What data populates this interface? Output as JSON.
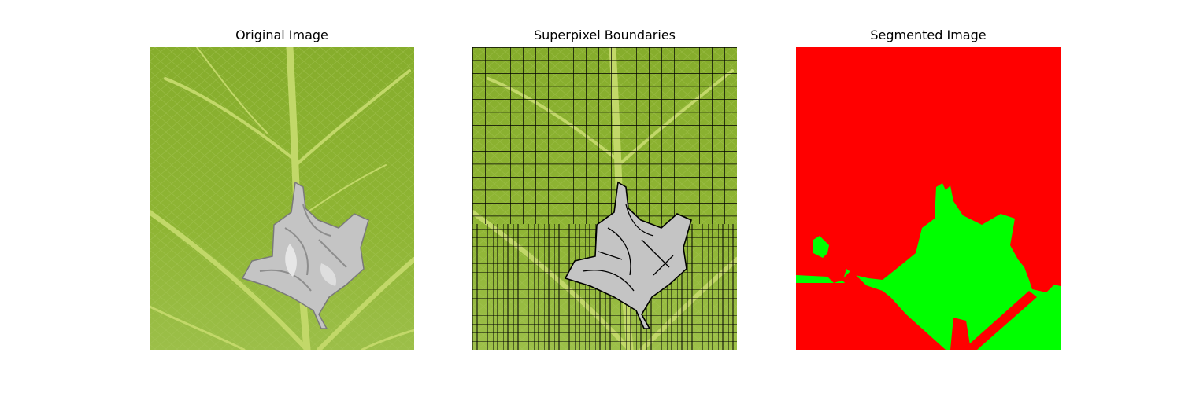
{
  "figure": {
    "panels": [
      {
        "title": "Original Image"
      },
      {
        "title": "Superpixel Boundaries"
      },
      {
        "title": "Segmented Image"
      }
    ]
  },
  "colors": {
    "leaf_green": "#8cb030",
    "leaf_dark": "#6f9424",
    "vein_light": "#c9dc70",
    "insect_silver": "#c8c8c8",
    "boundary": "#000000",
    "segment_background": "#ff0000",
    "segment_foreground": "#00ff00"
  }
}
